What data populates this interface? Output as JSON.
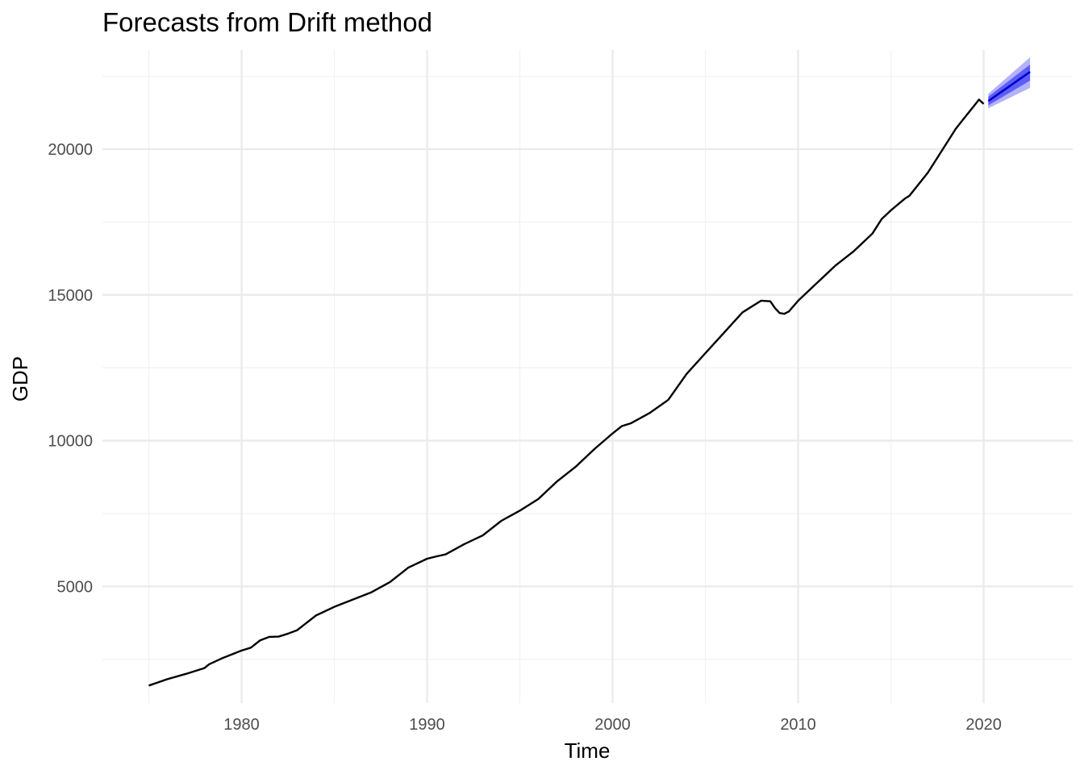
{
  "chart_data": {
    "type": "line",
    "title": "Forecasts from Drift method",
    "xlabel": "Time",
    "ylabel": "GDP",
    "xlim": [
      1972.5,
      2024.8
    ],
    "ylim": [
      1000,
      23400
    ],
    "x_ticks": [
      1980,
      1990,
      2000,
      2010,
      2020
    ],
    "y_ticks": [
      5000,
      10000,
      15000,
      20000
    ],
    "x_minor": [
      1975,
      1985,
      1995,
      2005,
      2015
    ],
    "y_minor": [
      2500,
      7500,
      12500,
      17500,
      22500
    ],
    "grid": true,
    "legend": "none",
    "colors": {
      "history": "#000000",
      "forecast_line": "#0000cc",
      "pi80": "#5e5ef5",
      "pi95": "#b3b3fa"
    },
    "series": [
      {
        "role": "history",
        "x": [
          1975.0,
          1976.0,
          1977.0,
          1978.0,
          1978.25,
          1979.0,
          1980.0,
          1980.5,
          1981.0,
          1981.5,
          1982.0,
          1982.5,
          1983.0,
          1984.0,
          1985.0,
          1986.0,
          1987.0,
          1988.0,
          1989.0,
          1990.0,
          1990.5,
          1991.0,
          1992.0,
          1993.0,
          1994.0,
          1995.0,
          1996.0,
          1997.0,
          1998.0,
          1999.0,
          2000.0,
          2000.5,
          2001.0,
          2002.0,
          2003.0,
          2004.0,
          2005.0,
          2006.0,
          2007.0,
          2007.75,
          2008.0,
          2008.5,
          2008.75,
          2009.0,
          2009.25,
          2009.5,
          2010.0,
          2011.0,
          2012.0,
          2013.0,
          2014.0,
          2014.5,
          2015.0,
          2015.75,
          2016.0,
          2017.0,
          2018.0,
          2018.5,
          2019.0,
          2019.5,
          2019.75,
          2020.0
        ],
        "values": [
          1600,
          1820,
          2000,
          2200,
          2330,
          2550,
          2800,
          2900,
          3150,
          3270,
          3280,
          3380,
          3500,
          4000,
          4300,
          4550,
          4800,
          5150,
          5650,
          5950,
          6030,
          6100,
          6450,
          6750,
          7250,
          7600,
          8000,
          8600,
          9100,
          9700,
          10250,
          10500,
          10600,
          10950,
          11400,
          12300,
          13000,
          13700,
          14400,
          14700,
          14800,
          14780,
          14550,
          14380,
          14350,
          14430,
          14800,
          15400,
          16000,
          16500,
          17100,
          17600,
          17900,
          18300,
          18400,
          19200,
          20200,
          20700,
          21100,
          21500,
          21700,
          21550
        ]
      },
      {
        "role": "forecast",
        "x": [
          2020.25,
          2022.5
        ],
        "values": [
          21650,
          22650
        ]
      },
      {
        "role": "pi80",
        "x": [
          2020.25,
          2022.5
        ],
        "upper": [
          21800,
          22900
        ],
        "lower": [
          21500,
          22350
        ]
      },
      {
        "role": "pi95",
        "x": [
          2020.25,
          2022.5
        ],
        "upper": [
          21900,
          23150
        ],
        "lower": [
          21400,
          22100
        ]
      }
    ]
  }
}
